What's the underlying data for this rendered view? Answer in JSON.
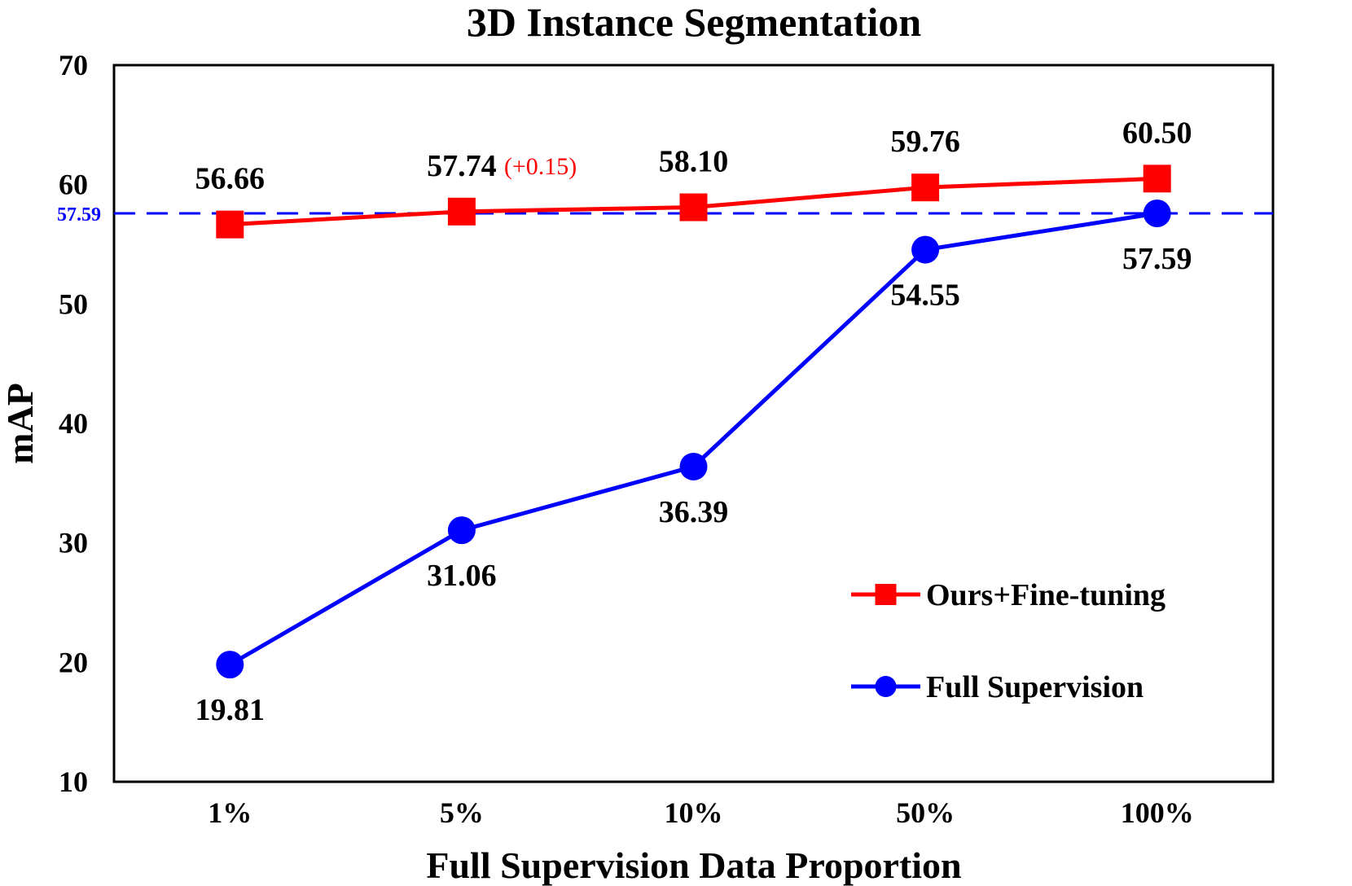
{
  "chart_data": {
    "type": "line",
    "title": "3D Instance Segmentation",
    "xlabel": "Full Supervision Data Proportion",
    "ylabel": "mAP",
    "ylim": [
      10,
      70
    ],
    "yticks": [
      "10",
      "20",
      "30",
      "40",
      "50",
      "60",
      "70"
    ],
    "categories": [
      "1%",
      "5%",
      "10%",
      "50%",
      "100%"
    ],
    "series": [
      {
        "name": "Ours+Fine-tuning",
        "color": "#ff0000",
        "marker": "square",
        "values": [
          56.66,
          57.74,
          58.1,
          59.76,
          60.5
        ],
        "labels": [
          "56.66",
          "57.74",
          "58.10",
          "59.76",
          "60.50"
        ],
        "label_position": "above"
      },
      {
        "name": "Full Supervision",
        "color": "#0000ff",
        "marker": "circle",
        "values": [
          19.81,
          31.06,
          36.39,
          54.55,
          57.59
        ],
        "labels": [
          "19.81",
          "31.06",
          "36.39",
          "54.55",
          "57.59"
        ],
        "label_position": "below"
      }
    ],
    "reference_line": {
      "value": 57.59,
      "label": "57.59",
      "color": "#0000ff",
      "style": "dashed"
    },
    "annotation": {
      "text": "(+0.15)",
      "color": "#ff0000",
      "category": "5%"
    },
    "legend": {
      "position": "bottom-right"
    },
    "grid": false
  }
}
